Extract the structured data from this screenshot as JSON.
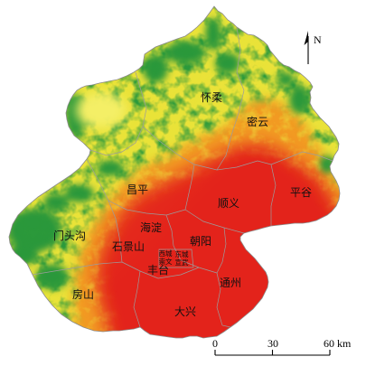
{
  "map": {
    "districts": {
      "huairou": "怀柔",
      "miyun": "密云",
      "changping": "昌平",
      "shunyi": "顺义",
      "pinggu": "平谷",
      "haidian": "海淀",
      "mentougou": "门头沟",
      "chaoyang": "朝阳",
      "shijingshan": "石景山",
      "xicheng": "西城",
      "dongcheng": "东城",
      "chongwen": "崇文",
      "xuanwu": "宣武",
      "fengtai": "丰台",
      "fangshan": "房山",
      "tongzhou": "通州",
      "daxing": "大兴"
    },
    "north_arrow": {
      "label": "N"
    },
    "scale_bar": {
      "labels": [
        "0",
        "30",
        "60 km"
      ]
    },
    "colors": {
      "plain": "#e3231b",
      "plain_light": "#ef5f22",
      "hill": "#f29a24",
      "upland": "#e9e339",
      "basin": "#f4ef66",
      "mountain": "#2b983b",
      "boundary": "#9c9c9c",
      "outline": "#8a8a8a",
      "ink": "#000000"
    }
  }
}
